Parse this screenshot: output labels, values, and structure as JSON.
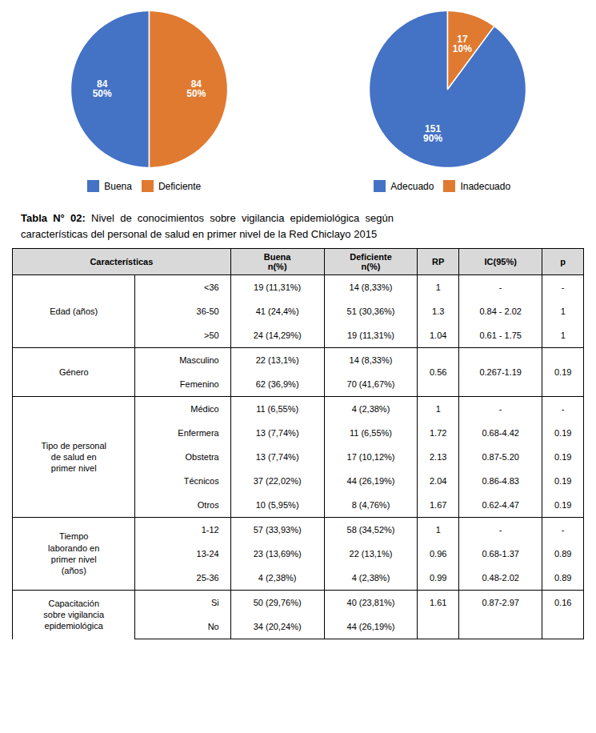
{
  "chart_data": [
    {
      "type": "pie",
      "categories": [
        "Buena",
        "Deficiente"
      ],
      "values": [
        84,
        84
      ],
      "value_labels": [
        "84\n50%",
        "84\n50%"
      ],
      "colors": [
        "#4472C4",
        "#E07A30"
      ],
      "data_labels": true,
      "legend": "bottom"
    },
    {
      "type": "pie",
      "categories": [
        "Adecuado",
        "Inadecuado"
      ],
      "values": [
        151,
        17
      ],
      "value_labels": [
        "151\n90%",
        "17\n10%"
      ],
      "colors": [
        "#4472C4",
        "#E07A30"
      ],
      "data_labels": true,
      "legend": "bottom"
    },
    {
      "type": "table",
      "title_bold": "Tabla  N°  02:",
      "title": "  Nivel  de  conocimientos  sobre  vigilancia  epidemiológica  según",
      "subtitle": "características del personal de salud en primer nivel de la Red Chiclayo 2015",
      "columns": [
        "Características",
        "Buena\nn(%)",
        "Deficiente\nn(%)",
        "RP",
        "IC(95%)",
        "p"
      ],
      "groups": [
        {
          "label": "Edad (años)",
          "rows": [
            {
              "label": "<36",
              "cells": [
                "19 (11,31%)",
                "14 (8,33%)"
              ],
              "stats": [
                "1",
                "-",
                "-"
              ]
            },
            {
              "label": "36-50",
              "cells": [
                "41 (24,4%)",
                "51 (30,36%)"
              ],
              "stats": [
                "1.3",
                "0.84 - 2.02",
                "1"
              ]
            },
            {
              "label": ">50",
              "cells": [
                "24 (14,29%)",
                "19 (11,31%)"
              ],
              "stats": [
                "1.04",
                "0.61 - 1.75",
                "1"
              ]
            }
          ]
        },
        {
          "label": "Género",
          "stats": [
            "0.56",
            "0.267-1.19",
            "0.19"
          ],
          "rows": [
            {
              "label": "Masculino",
              "cells": [
                "22 (13,1%)",
                "14 (8,33%)"
              ]
            },
            {
              "label": "Femenino",
              "cells": [
                "62 (36,9%)",
                "70 (41,67%)"
              ]
            }
          ]
        },
        {
          "label": "Tipo de personal\nde salud en\nprimer nivel",
          "rows": [
            {
              "label": "Médico",
              "cells": [
                "11 (6,55%)",
                "4 (2,38%)"
              ],
              "stats": [
                "1",
                "-",
                "-"
              ]
            },
            {
              "label": "Enfermera",
              "cells": [
                "13 (7,74%)",
                "11 (6,55%)"
              ],
              "stats": [
                "1.72",
                "0.68-4.42",
                "0.19"
              ]
            },
            {
              "label": "Obstetra",
              "cells": [
                "13 (7,74%)",
                "17 (10,12%)"
              ],
              "stats": [
                "2.13",
                "0.87-5.20",
                "0.19"
              ]
            },
            {
              "label": "Técnicos",
              "cells": [
                "37 (22,02%)",
                "44 (26,19%)"
              ],
              "stats": [
                "2.04",
                "0.86-4.83",
                "0.19"
              ]
            },
            {
              "label": "Otros",
              "cells": [
                "10 (5,95%)",
                "8 (4,76%)"
              ],
              "stats": [
                "1.67",
                "0.62-4.47",
                "0.19"
              ]
            }
          ]
        },
        {
          "label": "Tiempo\nlaborando en\nprimer nivel\n(años)",
          "rows": [
            {
              "label": "1-12",
              "cells": [
                "57 (33,93%)",
                "58 (34,52%)"
              ],
              "stats": [
                "1",
                "-",
                "-"
              ]
            },
            {
              "label": "13-24",
              "cells": [
                "23 (13,69%)",
                "22 (13,1%)"
              ],
              "stats": [
                "0.96",
                "0.68-1.37",
                "0.89"
              ]
            },
            {
              "label": "25-36",
              "cells": [
                "4 (2,38%)",
                "4 (2,38%)"
              ],
              "stats": [
                "0.99",
                "0.48-2.02",
                "0.89"
              ]
            }
          ]
        },
        {
          "label": "Capacitación\nsobre vigilancia\nepidemiológica",
          "rows": [
            {
              "label": "Si",
              "cells": [
                "50 (29,76%)",
                "40 (23,81%)"
              ],
              "stats": [
                "1.61",
                "0.87-2.97",
                "0.16"
              ]
            },
            {
              "label": "No",
              "cells": [
                "34 (20,24%)",
                "44 (26,19%)"
              ]
            }
          ]
        }
      ]
    }
  ]
}
